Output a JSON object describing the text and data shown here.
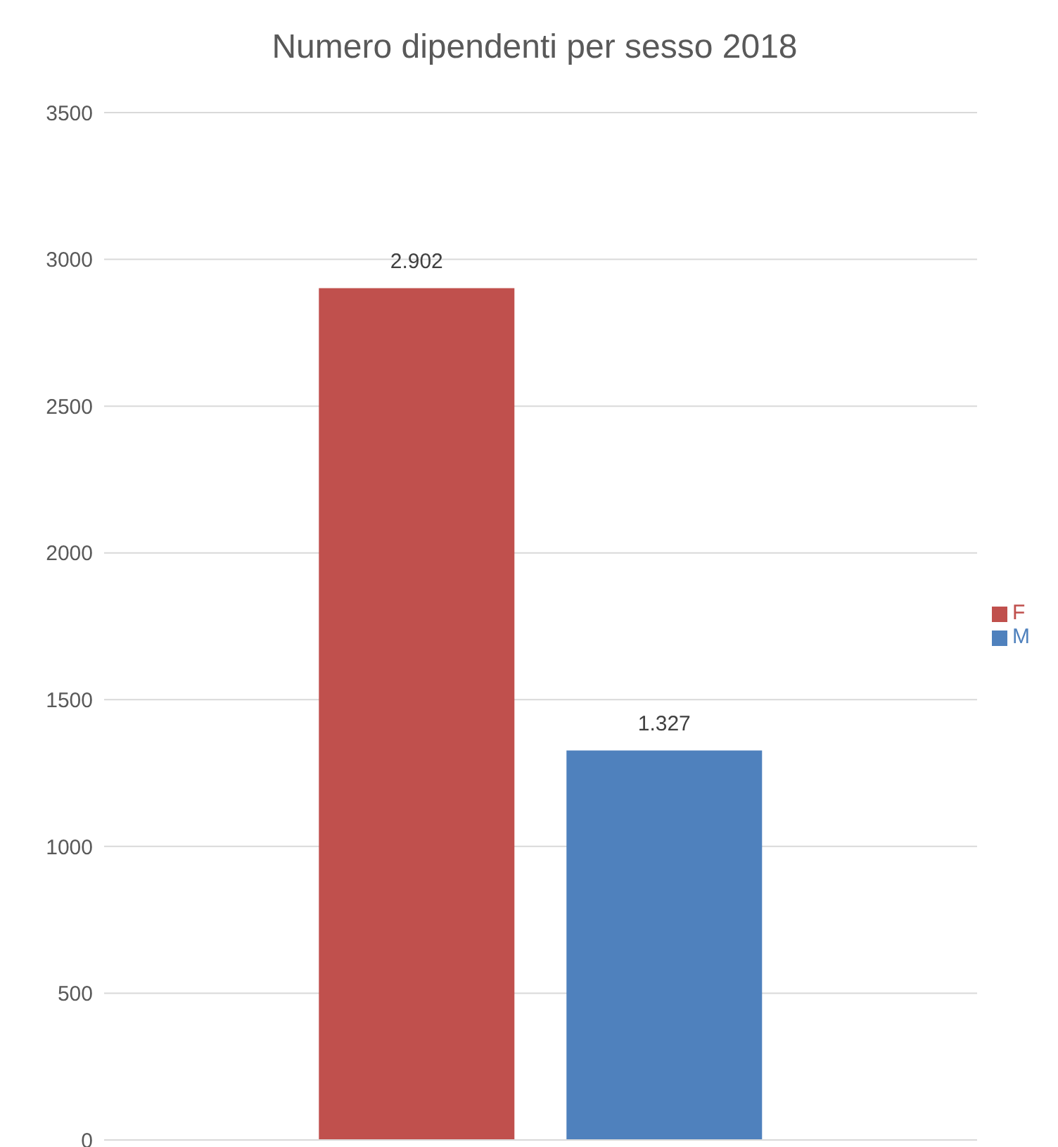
{
  "chart_data": {
    "type": "bar",
    "title": "Numero dipendenti per sesso 2018",
    "categories": [
      null
    ],
    "series": [
      {
        "name": "F",
        "color": "#c0504d",
        "values": [
          2902
        ],
        "value_labels": [
          "2.902"
        ]
      },
      {
        "name": "M",
        "color": "#4f81bd",
        "values": [
          1327
        ],
        "value_labels": [
          "1.327"
        ]
      }
    ],
    "ylim": [
      0,
      3500
    ],
    "yticks": [
      0,
      500,
      1000,
      1500,
      2000,
      2500,
      3000,
      3500
    ],
    "grid": "y",
    "legend": "right"
  }
}
